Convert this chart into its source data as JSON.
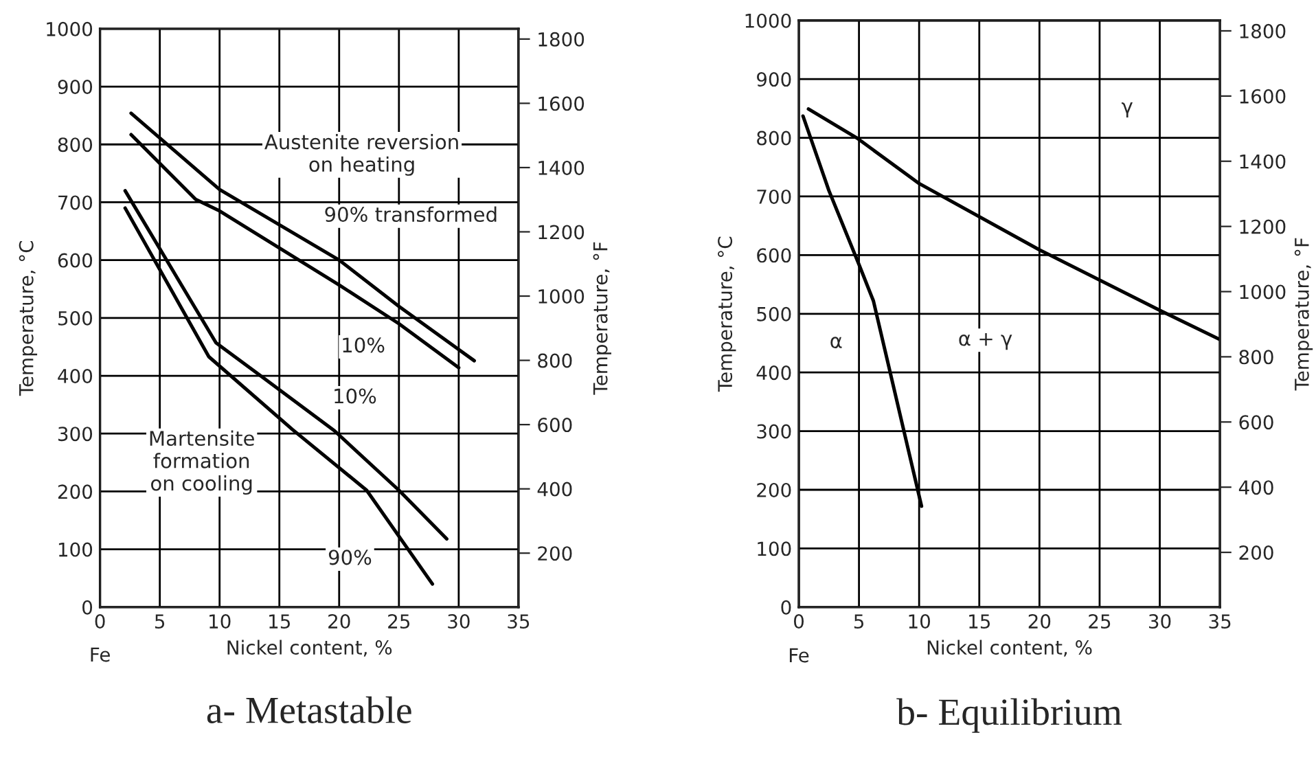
{
  "chart_data": [
    {
      "type": "line",
      "title": "a- Metastable",
      "xlabel": "Nickel content, %",
      "ylabel": "Temperature, °C",
      "y2label": "Temperature, °F",
      "xlim": [
        0,
        35
      ],
      "ylim": [
        0,
        1000
      ],
      "xticks": [
        0,
        5,
        10,
        15,
        20,
        25,
        30,
        35
      ],
      "yticks": [
        0,
        100,
        200,
        300,
        400,
        500,
        600,
        700,
        800,
        900,
        1000
      ],
      "y2lim": [
        32,
        1832
      ],
      "y2ticks": [
        200,
        400,
        600,
        800,
        1000,
        1200,
        1400,
        1600,
        1800
      ],
      "grid": true,
      "series": [
        {
          "color": "#000000",
          "x": [
            2.6,
            10,
            20,
            25,
            31.3
          ],
          "values": [
            854,
            722,
            600,
            520,
            426
          ]
        },
        {
          "color": "#000000",
          "x": [
            2.6,
            8,
            10,
            20,
            25,
            30
          ],
          "values": [
            817,
            705,
            685,
            557,
            490,
            414
          ]
        },
        {
          "color": "#000000",
          "x": [
            2.1,
            9.7,
            13.1,
            19.6,
            25,
            29
          ],
          "values": [
            720,
            457,
            405,
            305,
            202,
            118
          ]
        },
        {
          "color": "#000000",
          "x": [
            2.1,
            9.1,
            16.1,
            22.3,
            27.8
          ],
          "values": [
            690,
            433,
            307,
            202,
            40
          ]
        }
      ],
      "annotations": [
        "Fe",
        "Austenite reversion\non heating",
        "90% transformed",
        {
          "text": "10%",
          "x": 22,
          "y": 450
        },
        {
          "text": "10%",
          "x": 21.3,
          "y": 362
        },
        "Martensite\nformation\non cooling",
        {
          "text": "90%",
          "x": 20.9,
          "y": 83
        }
      ]
    },
    {
      "type": "line",
      "title": "b- Equilibrium",
      "xlabel": "Nickel content, %",
      "ylabel": "Temperature, °C",
      "y2label": "Temperature, °F",
      "xlim": [
        0,
        35
      ],
      "ylim": [
        0,
        1000
      ],
      "xticks": [
        0,
        5,
        10,
        15,
        20,
        25,
        30,
        35
      ],
      "yticks": [
        0,
        100,
        200,
        300,
        400,
        500,
        600,
        700,
        800,
        900,
        1000
      ],
      "y2lim": [
        32,
        1832
      ],
      "y2ticks": [
        200,
        400,
        600,
        800,
        1000,
        1200,
        1400,
        1600,
        1800
      ],
      "grid": true,
      "series": [
        {
          "color": "#000000",
          "x": [
            0.8,
            4.8,
            10,
            20,
            30,
            35
          ],
          "values": [
            849,
            800,
            722,
            609,
            506,
            456
          ]
        },
        {
          "color": "#000000",
          "x": [
            0.35,
            2.5,
            5.0,
            6.2,
            10.2
          ],
          "values": [
            837,
            710,
            584,
            522,
            172
          ]
        }
      ],
      "annotations": [
        "Fe",
        {
          "text": "γ",
          "x": 27.3,
          "y": 851
        },
        {
          "text": "α",
          "x": 3.1,
          "y": 451
        },
        {
          "text": "α + γ",
          "x": 15.5,
          "y": 455
        }
      ]
    }
  ]
}
